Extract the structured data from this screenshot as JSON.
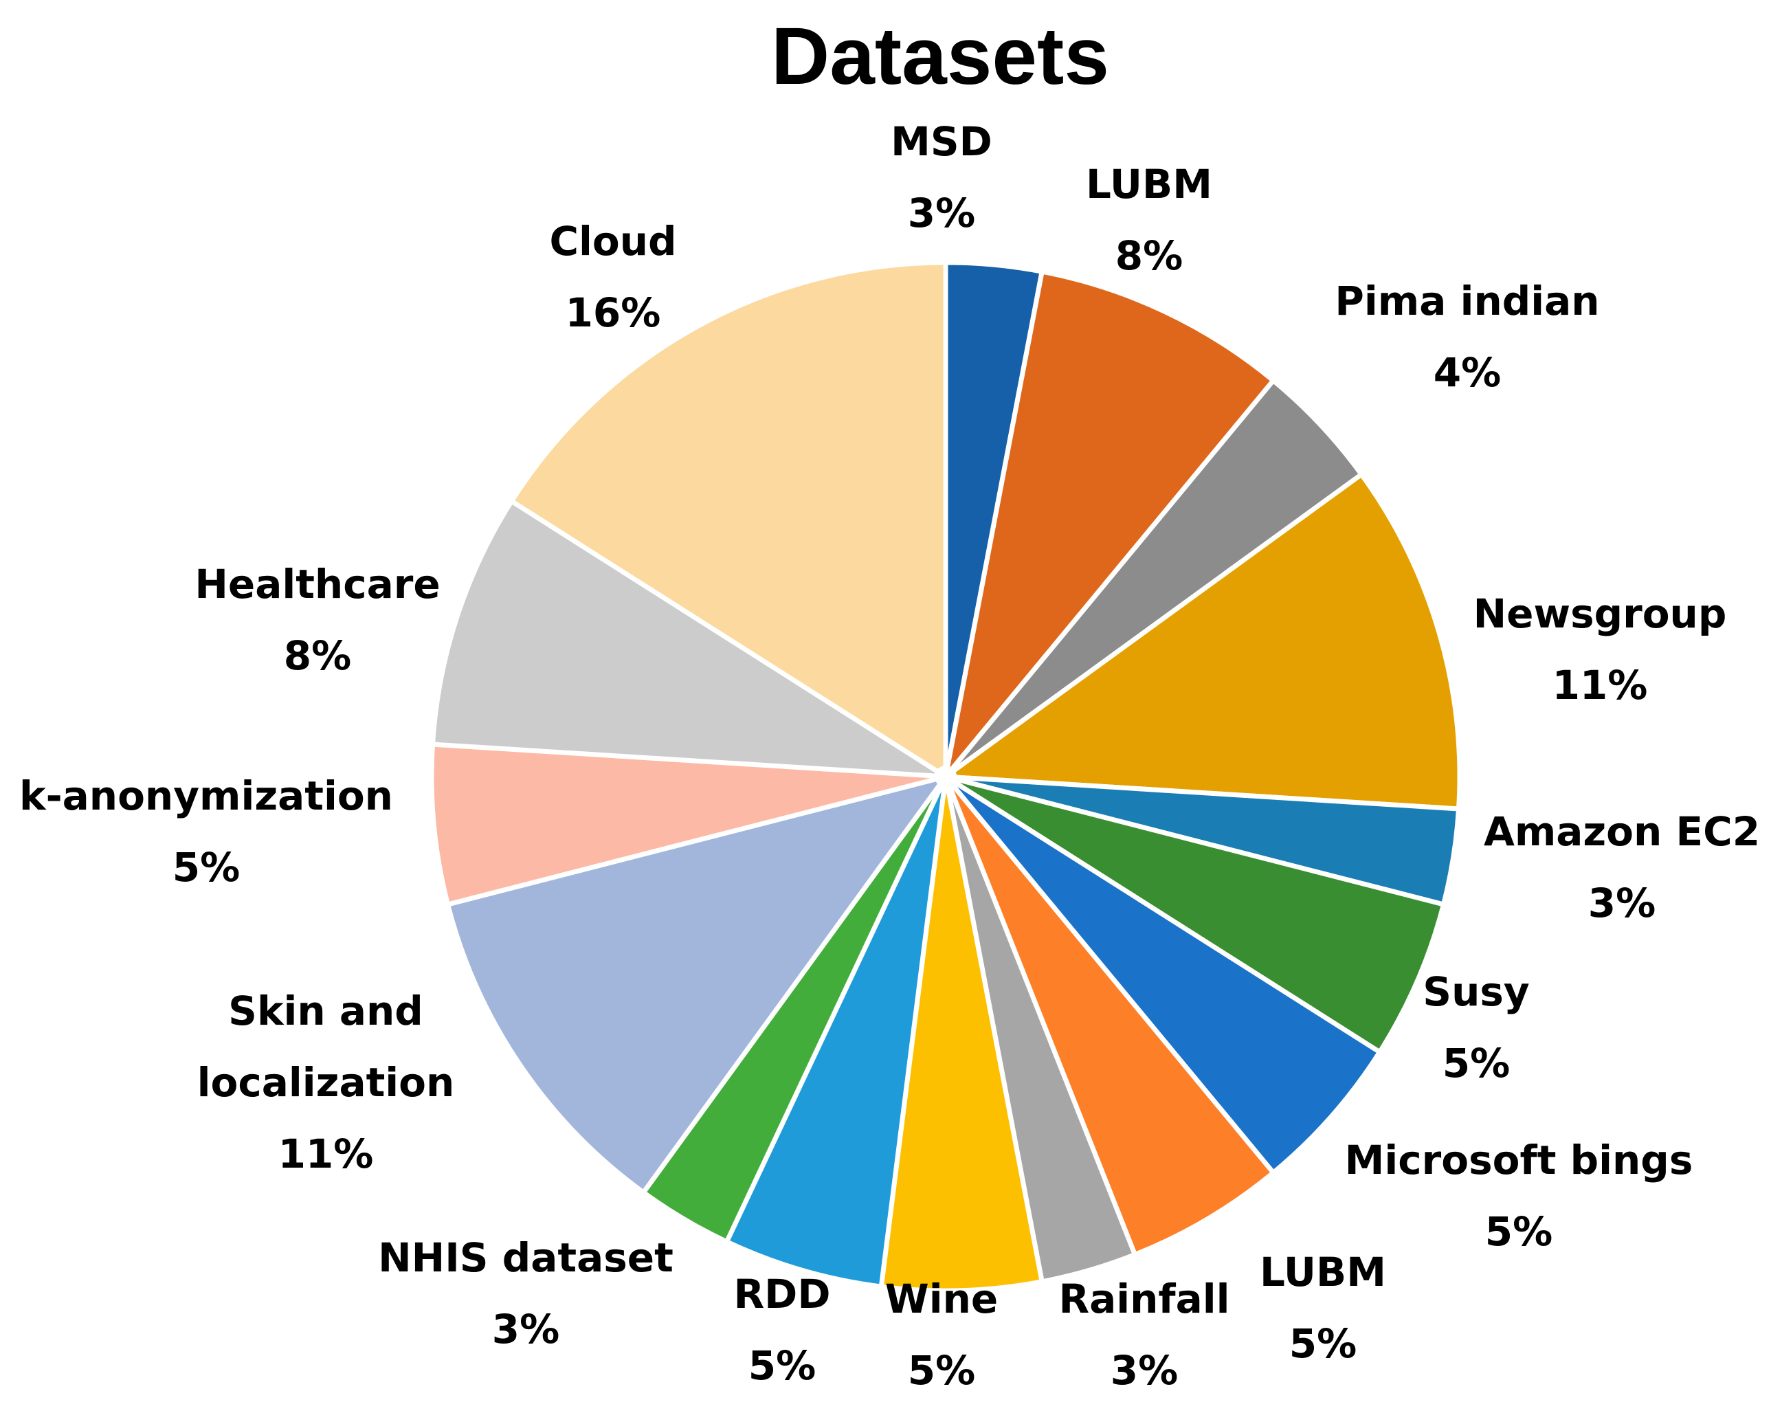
{
  "chart_data": {
    "type": "pie",
    "title": "Datasets",
    "slices": [
      {
        "label": [
          "MSD"
        ],
        "percent_label": "3%",
        "value": 3,
        "color": "#1560A8"
      },
      {
        "label": [
          "LUBM"
        ],
        "percent_label": "8%",
        "value": 8,
        "color": "#DE671C"
      },
      {
        "label": [
          "Pima indian"
        ],
        "percent_label": "4%",
        "value": 4,
        "color": "#8C8C8C"
      },
      {
        "label": [
          "Newsgroup"
        ],
        "percent_label": "11%",
        "value": 11,
        "color": "#E4A000"
      },
      {
        "label": [
          "Amazon EC2"
        ],
        "percent_label": "3%",
        "value": 3,
        "color": "#1A7DB3"
      },
      {
        "label": [
          "Susy"
        ],
        "percent_label": "5%",
        "value": 5,
        "color": "#388E30"
      },
      {
        "label": [
          "Microsoft bings"
        ],
        "percent_label": "5%",
        "value": 5,
        "color": "#1A73C9"
      },
      {
        "label": [
          "LUBM"
        ],
        "percent_label": "5%",
        "value": 5,
        "color": "#FD7F28"
      },
      {
        "label": [
          "Rainfall"
        ],
        "percent_label": "3%",
        "value": 3,
        "color": "#A6A6A6"
      },
      {
        "label": [
          "Wine"
        ],
        "percent_label": "5%",
        "value": 5,
        "color": "#FDC000"
      },
      {
        "label": [
          "RDD"
        ],
        "percent_label": "5%",
        "value": 5,
        "color": "#1E9BD8"
      },
      {
        "label": [
          "NHIS dataset"
        ],
        "percent_label": "3%",
        "value": 3,
        "color": "#43AD3C"
      },
      {
        "label": [
          "Skin and",
          "localization"
        ],
        "percent_label": "11%",
        "value": 11,
        "color": "#A2B6DC"
      },
      {
        "label": [
          "k-anonymization"
        ],
        "percent_label": "5%",
        "value": 5,
        "color": "#FCB9A5"
      },
      {
        "label": [
          "Healthcare"
        ],
        "percent_label": "8%",
        "value": 8,
        "color": "#CCCCCC"
      },
      {
        "label": [
          "Cloud"
        ],
        "percent_label": "16%",
        "value": 16,
        "color": "#FCD99E"
      }
    ]
  }
}
